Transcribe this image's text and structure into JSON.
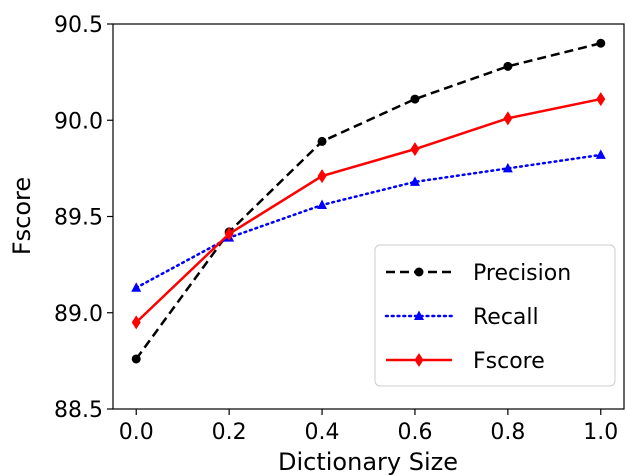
{
  "chart_data": {
    "type": "line",
    "xlabel": "Dictionary Size",
    "ylabel": "Fscore",
    "xlim": [
      -0.05,
      1.05
    ],
    "ylim": [
      88.5,
      90.5
    ],
    "x_ticks": [
      "0.0",
      "0.2",
      "0.4",
      "0.6",
      "0.8",
      "1.0"
    ],
    "y_ticks": [
      "88.5",
      "89.0",
      "89.5",
      "90.0",
      "90.5"
    ],
    "x": [
      0.0,
      0.2,
      0.4,
      0.6,
      0.8,
      1.0
    ],
    "legend_position": "lower-right",
    "grid": false,
    "series": [
      {
        "name": "Precision",
        "values": [
          88.76,
          89.42,
          89.89,
          90.11,
          90.28,
          90.4
        ],
        "color": "#000000",
        "style": "dashed",
        "marker": "circle"
      },
      {
        "name": "Recall",
        "values": [
          89.13,
          89.39,
          89.56,
          89.68,
          89.75,
          89.82
        ],
        "color": "#0000ff",
        "style": "dotted",
        "marker": "triangle"
      },
      {
        "name": "Fscore",
        "values": [
          88.95,
          89.41,
          89.71,
          89.85,
          90.01,
          90.11
        ],
        "color": "#ff0000",
        "style": "solid",
        "marker": "diamond"
      }
    ]
  }
}
